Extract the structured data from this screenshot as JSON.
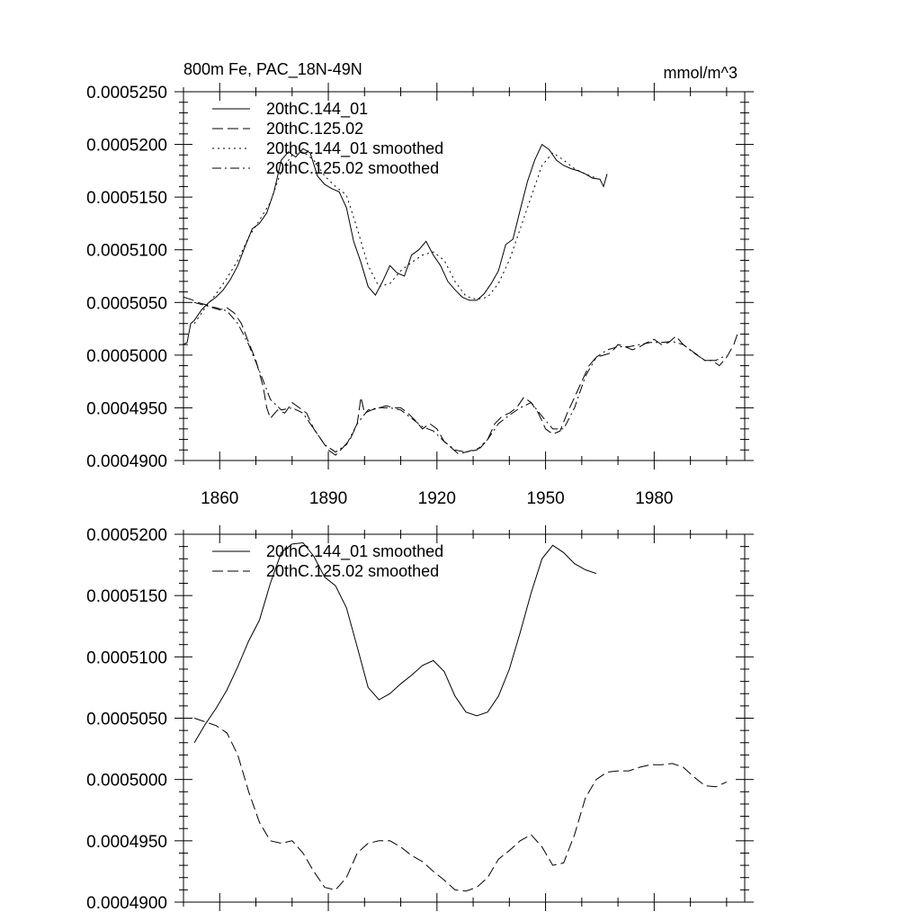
{
  "chart_data": [
    {
      "type": "line",
      "title": "800m Fe, PAC_18N-49N",
      "units_label": "mmol/m^3",
      "xlim": [
        1850,
        2005
      ],
      "ylim": [
        0.00049,
        0.000525
      ],
      "xticks": [
        1860,
        1890,
        1920,
        1950,
        1980
      ],
      "xtick_labels": [
        "1860",
        "1890",
        "1920",
        "1950",
        "1980"
      ],
      "yticks": [
        0.00049,
        0.000495,
        0.0005,
        0.000505,
        0.00051,
        0.000515,
        0.00052,
        0.000525
      ],
      "ytick_labels": [
        "0.0004900",
        "0.0004950",
        "0.0005000",
        "0.0005050",
        "0.0005100",
        "0.0005150",
        "0.0005200",
        "0.0005250"
      ],
      "legend_position": "top-left",
      "series": [
        {
          "name": "20thC.144_01",
          "style": "solid",
          "x": [
            1850,
            1851,
            1852,
            1853,
            1855,
            1857,
            1859,
            1861,
            1863,
            1865,
            1867,
            1869,
            1871,
            1873,
            1875,
            1877,
            1879,
            1881,
            1883,
            1885,
            1887,
            1889,
            1891,
            1893,
            1895,
            1897,
            1899,
            1901,
            1903,
            1905,
            1907,
            1909,
            1911,
            1913,
            1915,
            1917,
            1919,
            1921,
            1923,
            1925,
            1927,
            1929,
            1931,
            1933,
            1935,
            1937,
            1939,
            1941,
            1943,
            1945,
            1947,
            1949,
            1951,
            1953,
            1955,
            1957,
            1959,
            1961,
            1963,
            1965,
            1966,
            1967
          ],
          "y": [
            0.000501,
            0.0005012,
            0.000503,
            0.0005033,
            0.0005043,
            0.000505,
            0.0005055,
            0.0005062,
            0.0005072,
            0.0005085,
            0.0005103,
            0.000512,
            0.0005125,
            0.0005135,
            0.0005155,
            0.0005185,
            0.0005193,
            0.0005188,
            0.0005196,
            0.0005192,
            0.000517,
            0.0005162,
            0.0005158,
            0.0005155,
            0.000514,
            0.0005108,
            0.0005088,
            0.0005065,
            0.0005057,
            0.000507,
            0.0005085,
            0.0005078,
            0.0005075,
            0.0005095,
            0.00051,
            0.0005108,
            0.0005095,
            0.0005085,
            0.000507,
            0.0005062,
            0.0005055,
            0.0005052,
            0.0005052,
            0.0005058,
            0.0005068,
            0.000508,
            0.0005105,
            0.000511,
            0.0005138,
            0.0005165,
            0.0005185,
            0.00052,
            0.0005195,
            0.0005185,
            0.000518,
            0.0005177,
            0.0005175,
            0.0005172,
            0.0005168,
            0.0005167,
            0.000516,
            0.0005172
          ]
        },
        {
          "name": "20thC.125.02",
          "style": "dash",
          "x": [
            1850,
            1852,
            1854,
            1856,
            1858,
            1860,
            1862,
            1864,
            1866,
            1868,
            1870,
            1872,
            1873,
            1874,
            1876,
            1878,
            1880,
            1882,
            1884,
            1886,
            1888,
            1890,
            1892,
            1894,
            1896,
            1898,
            1899,
            1900,
            1902,
            1904,
            1906,
            1908,
            1910,
            1912,
            1914,
            1916,
            1918,
            1920,
            1922,
            1924,
            1926,
            1928,
            1930,
            1932,
            1934,
            1936,
            1938,
            1940,
            1942,
            1944,
            1946,
            1948,
            1950,
            1952,
            1954,
            1956,
            1958,
            1960,
            1962,
            1964,
            1966,
            1968,
            1970,
            1972,
            1974,
            1976,
            1978,
            1980,
            1982,
            1984,
            1986,
            1988,
            1990,
            1992,
            1994,
            1996,
            1998,
            2000,
            2002,
            2003
          ],
          "y": [
            0.0005055,
            0.0005053,
            0.000505,
            0.0005048,
            0.0005045,
            0.0005043,
            0.0005045,
            0.000504,
            0.000503,
            0.0005012,
            0.0004995,
            0.000497,
            0.000495,
            0.000494,
            0.0004948,
            0.0004945,
            0.0004955,
            0.000495,
            0.0004945,
            0.000493,
            0.000492,
            0.000491,
            0.0004905,
            0.0004912,
            0.000492,
            0.0004935,
            0.000496,
            0.0004945,
            0.0004948,
            0.000495,
            0.0004952,
            0.000495,
            0.000495,
            0.0004945,
            0.0004938,
            0.000493,
            0.0004935,
            0.000493,
            0.0004918,
            0.0004912,
            0.0004906,
            0.0004908,
            0.000491,
            0.0004912,
            0.000492,
            0.0004935,
            0.0004942,
            0.0004945,
            0.000495,
            0.000496,
            0.0004955,
            0.0004945,
            0.000493,
            0.0004925,
            0.0004928,
            0.0004945,
            0.000496,
            0.0004975,
            0.000499,
            0.0004998,
            0.0005,
            0.0005002,
            0.000501,
            0.0005008,
            0.0005005,
            0.0005008,
            0.0005012,
            0.0005015,
            0.000501,
            0.0005012,
            0.0005018,
            0.000501,
            0.0005005,
            0.0005,
            0.0004995,
            0.0004995,
            0.000499,
            0.0004998,
            0.000501,
            0.000502
          ]
        },
        {
          "name": "20thC.144_01 smoothed",
          "style": "dot",
          "x": [
            1853,
            1856,
            1859,
            1862,
            1865,
            1868,
            1871,
            1874,
            1877,
            1880,
            1883,
            1886,
            1889,
            1892,
            1895,
            1898,
            1901,
            1904,
            1907,
            1910,
            1913,
            1916,
            1919,
            1922,
            1925,
            1928,
            1931,
            1934,
            1937,
            1940,
            1943,
            1946,
            1949,
            1952,
            1955,
            1958,
            1961,
            1964
          ],
          "y": [
            0.000503,
            0.0005045,
            0.0005058,
            0.0005073,
            0.000509,
            0.0005112,
            0.0005128,
            0.0005145,
            0.0005175,
            0.000519,
            0.0005193,
            0.0005185,
            0.000517,
            0.000516,
            0.0005152,
            0.000512,
            0.0005085,
            0.0005065,
            0.0005068,
            0.000508,
            0.0005088,
            0.0005095,
            0.0005098,
            0.000509,
            0.000507,
            0.0005056,
            0.0005053,
            0.0005055,
            0.0005068,
            0.000509,
            0.000512,
            0.000515,
            0.000518,
            0.0005192,
            0.0005185,
            0.0005177,
            0.0005172,
            0.0005168
          ]
        },
        {
          "name": "20thC.125.02 smoothed",
          "style": "dashdot",
          "x": [
            1853,
            1856,
            1859,
            1862,
            1865,
            1868,
            1871,
            1874,
            1877,
            1880,
            1883,
            1886,
            1889,
            1892,
            1895,
            1898,
            1901,
            1904,
            1907,
            1910,
            1913,
            1916,
            1919,
            1922,
            1925,
            1928,
            1931,
            1934,
            1937,
            1940,
            1943,
            1946,
            1949,
            1952,
            1955,
            1958,
            1961,
            1964,
            1967,
            1970,
            1973,
            1976,
            1979,
            1982,
            1985,
            1988,
            1991,
            1994,
            1997,
            2000
          ],
          "y": [
            0.000505,
            0.0005047,
            0.0005045,
            0.0005042,
            0.000503,
            0.000501,
            0.0004985,
            0.0004958,
            0.0004948,
            0.000495,
            0.0004945,
            0.000493,
            0.0004915,
            0.0004908,
            0.0004915,
            0.0004935,
            0.0004948,
            0.000495,
            0.000495,
            0.0004948,
            0.000494,
            0.0004932,
            0.0004928,
            0.0004918,
            0.000491,
            0.0004908,
            0.000491,
            0.000492,
            0.0004935,
            0.0004943,
            0.000495,
            0.0004955,
            0.0004942,
            0.000493,
            0.000493,
            0.000495,
            0.000498,
            0.0004998,
            0.0005005,
            0.0005008,
            0.0005008,
            0.000501,
            0.0005012,
            0.0005012,
            0.0005013,
            0.000501,
            0.0005002,
            0.0004995,
            0.0004995,
            0.0005
          ]
        }
      ]
    },
    {
      "type": "line",
      "title": "",
      "xlim": [
        1850,
        2005
      ],
      "ylim": [
        0.00049,
        0.00052
      ],
      "xticks": [
        1860,
        1890,
        1920,
        1950,
        1980
      ],
      "xtick_labels": [],
      "yticks": [
        0.00049,
        0.000495,
        0.0005,
        0.000505,
        0.00051,
        0.000515,
        0.00052
      ],
      "ytick_labels": [
        "0.0004900",
        "0.0004950",
        "0.0005000",
        "0.0005050",
        "0.0005100",
        "0.0005150",
        "0.0005200"
      ],
      "legend_position": "top-left",
      "series": [
        {
          "name": "20thC.144_01 smoothed",
          "style": "solid",
          "x": [
            1853,
            1856,
            1859,
            1862,
            1865,
            1868,
            1871,
            1874,
            1877,
            1880,
            1883,
            1886,
            1889,
            1892,
            1895,
            1898,
            1901,
            1904,
            1907,
            1910,
            1913,
            1916,
            1919,
            1922,
            1925,
            1928,
            1931,
            1934,
            1937,
            1940,
            1943,
            1946,
            1949,
            1952,
            1955,
            1958,
            1961,
            1964
          ],
          "y": [
            0.000503,
            0.0005045,
            0.0005058,
            0.0005073,
            0.0005092,
            0.0005113,
            0.000513,
            0.000516,
            0.0005185,
            0.0005192,
            0.0005193,
            0.0005182,
            0.0005165,
            0.0005158,
            0.000514,
            0.0005108,
            0.0005075,
            0.0005065,
            0.000507,
            0.0005078,
            0.0005085,
            0.0005093,
            0.0005097,
            0.0005088,
            0.0005068,
            0.0005055,
            0.0005052,
            0.0005055,
            0.0005068,
            0.000509,
            0.000512,
            0.0005152,
            0.000518,
            0.0005191,
            0.0005185,
            0.0005176,
            0.0005171,
            0.0005168
          ]
        },
        {
          "name": "20thC.125.02 smoothed",
          "style": "dash",
          "x": [
            1853,
            1856,
            1859,
            1862,
            1865,
            1868,
            1871,
            1874,
            1877,
            1880,
            1883,
            1886,
            1889,
            1892,
            1895,
            1898,
            1901,
            1904,
            1907,
            1910,
            1913,
            1916,
            1919,
            1922,
            1925,
            1928,
            1931,
            1934,
            1937,
            1940,
            1943,
            1946,
            1949,
            1952,
            1955,
            1958,
            1961,
            1964,
            1967,
            1970,
            1973,
            1976,
            1979,
            1982,
            1985,
            1988,
            1991,
            1994,
            1997,
            2000
          ],
          "y": [
            0.000505,
            0.0005047,
            0.0005044,
            0.0005038,
            0.000502,
            0.000499,
            0.0004965,
            0.000495,
            0.0004948,
            0.000495,
            0.000494,
            0.0004925,
            0.0004912,
            0.000491,
            0.000492,
            0.000494,
            0.0004948,
            0.000495,
            0.000495,
            0.0004945,
            0.0004938,
            0.0004933,
            0.0004925,
            0.0004918,
            0.000491,
            0.0004909,
            0.0004912,
            0.000492,
            0.0004935,
            0.0004942,
            0.000495,
            0.0004955,
            0.0004945,
            0.000493,
            0.0004932,
            0.0004955,
            0.0004985,
            0.0005,
            0.0005006,
            0.0005007,
            0.0005007,
            0.000501,
            0.0005012,
            0.0005012,
            0.0005013,
            0.000501,
            0.0005002,
            0.0004995,
            0.0004994,
            0.0004998
          ]
        }
      ]
    }
  ]
}
